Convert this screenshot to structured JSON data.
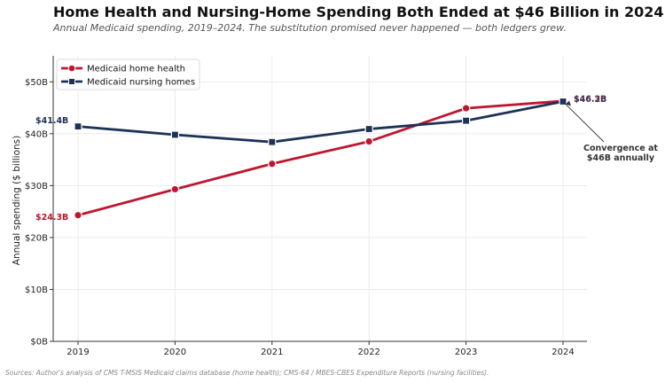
{
  "title": "Home Health and Nursing-Home Spending Both Ended at $46 Billion in 2024",
  "subtitle": "Annual Medicaid spending, 2019–2024. The substitution promised never happened — both ledgers grew.",
  "source": "Sources: Author's analysis of CMS T-MSIS Medicaid claims database (home health); CMS-64 / MBES-CBES Expenditure Reports (nursing facilities).",
  "chart_data": {
    "type": "line",
    "x": [
      2019,
      2020,
      2021,
      2022,
      2023,
      2024
    ],
    "xticks": [
      "2019",
      "2020",
      "2021",
      "2022",
      "2023",
      "2024"
    ],
    "ylabel": "Annual spending ($ billions)",
    "ylim": [
      0,
      55
    ],
    "yticks": [
      0,
      10,
      20,
      30,
      40,
      50
    ],
    "ytick_labels": [
      "$0B",
      "$10B",
      "$20B",
      "$30B",
      "$40B",
      "$50B"
    ],
    "grid": true,
    "legend_position": "top-left",
    "series": [
      {
        "name": "Medicaid home health",
        "color": "#c0152f",
        "marker": "circle",
        "values": [
          24.3,
          29.3,
          34.2,
          38.5,
          44.9,
          46.3
        ],
        "start_label": "$24.3B",
        "end_label": "$46.3B"
      },
      {
        "name": "Medicaid nursing homes",
        "color": "#1d3257",
        "marker": "square",
        "values": [
          41.4,
          39.8,
          38.4,
          40.9,
          42.5,
          46.2
        ],
        "start_label": "$41.4B",
        "end_label": "$46.2B"
      }
    ],
    "annotation": {
      "text_line1": "Convergence at",
      "text_line2": "$46B annually",
      "x": 2024,
      "y": 46.2
    }
  }
}
